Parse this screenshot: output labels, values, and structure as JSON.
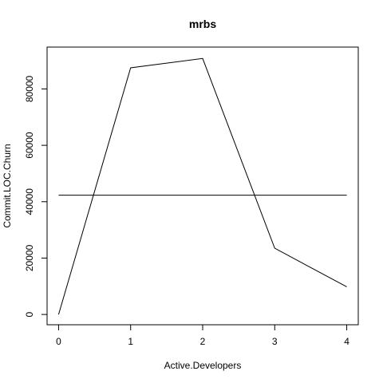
{
  "chart_data": {
    "type": "line",
    "title": "mrbs",
    "xlabel": "Active.Developers",
    "ylabel": "Commit.LOC.Churn",
    "xlim": [
      -0.16,
      4.16
    ],
    "ylim": [
      -3650,
      94850
    ],
    "x_ticks": [
      0,
      1,
      2,
      3,
      4
    ],
    "x_tick_labels": [
      "0",
      "1",
      "2",
      "3",
      "4"
    ],
    "y_ticks": [
      0,
      20000,
      40000,
      60000,
      80000
    ],
    "y_tick_labels": [
      "0",
      "20000",
      "40000",
      "60000",
      "80000"
    ],
    "grid": false,
    "series": [
      {
        "x": [
          0,
          1,
          2,
          3,
          4
        ],
        "values": [
          0,
          87500,
          90800,
          23500,
          9800
        ],
        "color": "#000000"
      }
    ],
    "hline": {
      "y": 42300,
      "color": "#000000"
    }
  }
}
